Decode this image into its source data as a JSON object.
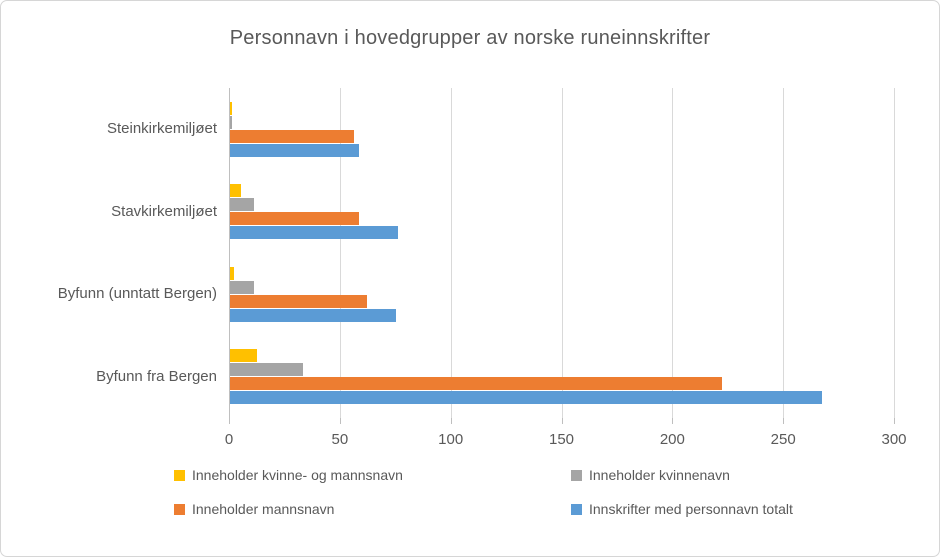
{
  "chart_data": {
    "type": "bar",
    "orientation": "horizontal",
    "title": "Personnavn i hovedgrupper av norske runeinnskrifter",
    "categories": [
      "Steinkirkemiljøet",
      "Stavkirkemiljøet",
      "Byfunn (unntatt Bergen)",
      "Byfunn fra Bergen"
    ],
    "series": [
      {
        "name": "Inneholder kvinne- og mannsnavn",
        "color": "#FFC000",
        "values": [
          1,
          5,
          2,
          12
        ]
      },
      {
        "name": "Inneholder kvinnenavn",
        "color": "#A5A5A5",
        "values": [
          1,
          11,
          11,
          33
        ]
      },
      {
        "name": "Inneholder mannsnavn",
        "color": "#ED7D31",
        "values": [
          56,
          58,
          62,
          222
        ]
      },
      {
        "name": "Innskrifter med personnavn totalt",
        "color": "#5B9BD5",
        "values": [
          58,
          76,
          75,
          267
        ]
      }
    ],
    "x_ticks": [
      "0",
      "50",
      "100",
      "150",
      "200",
      "250",
      "300"
    ],
    "xlim": [
      0,
      300
    ],
    "grid": true,
    "legend_position": "bottom",
    "legend_columns": 2
  },
  "style_colors": {
    "text": "#595959",
    "gridline": "#D9D9D9",
    "axis": "#BFBFBF",
    "frame_border": "#D6D6D6",
    "background": "#FFFFFF"
  }
}
